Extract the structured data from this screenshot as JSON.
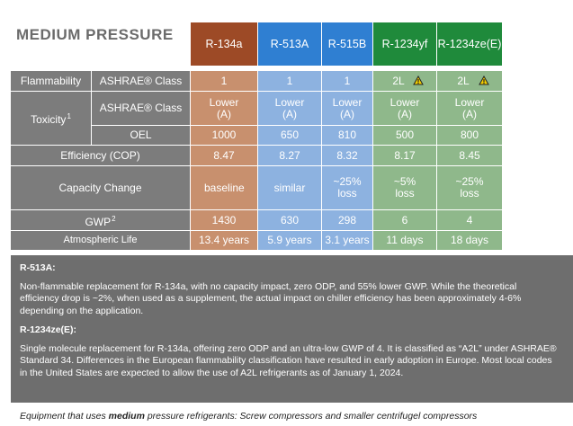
{
  "title": "MEDIUM PRESSURE",
  "table": {
    "columns": [
      "R-134a",
      "R-513A",
      "R-515B",
      "R-1234yf",
      "R-1234ze(E)"
    ],
    "rows": [
      {
        "group": "Flammability",
        "label": "ASHRAE® Class",
        "cells": [
          "1",
          "1",
          "1",
          "2L",
          "2L"
        ]
      },
      {
        "group": "Toxicity",
        "group_sup": "1",
        "label": "ASHRAE® Class",
        "cells": [
          "Lower (A)",
          "Lower (A)",
          "Lower (A)",
          "Lower (A)",
          "Lower (A)"
        ]
      },
      {
        "label": "OEL",
        "cells": [
          "1000",
          "650",
          "810",
          "500",
          "800"
        ]
      },
      {
        "label": "Efficiency (COP)",
        "cells": [
          "8.47",
          "8.27",
          "8.32",
          "8.17",
          "8.45"
        ]
      },
      {
        "label": "Capacity Change",
        "cells": [
          "baseline",
          "similar",
          "~25% loss",
          "~5% loss",
          "~25% loss"
        ]
      },
      {
        "label": "GWP",
        "sup": "2",
        "cells": [
          "1430",
          "630",
          "298",
          "6",
          "4"
        ]
      },
      {
        "label": "Atmospheric Life",
        "cells": [
          "13.4 years",
          "5.9 years",
          "3.1 years",
          "11 days",
          "18 days"
        ]
      }
    ]
  },
  "notes": [
    {
      "heading": "R-513A:",
      "text": "Non-flammable replacement for R-134a, with no capacity impact, zero ODP, and 55% lower GWP. While the theoretical efficiency drop is ~2%, when used as a supplement, the actual impact on chiller efficiency has been approximately 4-6% depending on the application."
    },
    {
      "heading": "R-1234ze(E):",
      "text": "Single molecule replacement for R-134a, offering zero ODP and an ultra-low GWP of 4. It is classified as “A2L” under ASHRAE® Standard 34. Differences in the European flammability classification have resulted in early adoption in Europe. Most local codes in the United States are expected to allow the use of A2L refrigerants as of January 1, 2024."
    }
  ],
  "footer": {
    "before": "Equipment that uses ",
    "emphasis": "medium",
    "after": " pressure refrigerants: Screw compressors and smaller centrifugel compressors"
  }
}
